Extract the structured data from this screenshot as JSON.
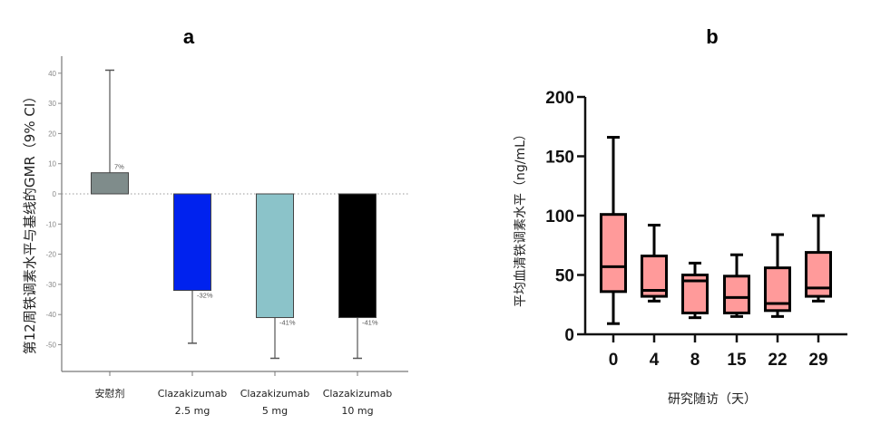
{
  "chart_data": [
    {
      "type": "bar",
      "title": "a",
      "ylabel": "第12周铁调素水平与基线的GMR（9% CI）",
      "xlabel": "",
      "ylim": [
        -58,
        44
      ],
      "yticks": [
        40,
        30,
        20,
        10,
        0,
        -10,
        -20,
        -30,
        -40,
        -50
      ],
      "reference_line": 0,
      "categories": [
        {
          "line1": "安慰剂",
          "line2": ""
        },
        {
          "line1": "Clazakizumab",
          "line2": "2.5 mg"
        },
        {
          "line1": "Clazakizumab",
          "line2": "5 mg"
        },
        {
          "line1": "Clazakizumab",
          "line2": "10 mg"
        }
      ],
      "values": [
        7,
        -32,
        -41,
        -41
      ],
      "value_labels": [
        "7%",
        "-32%",
        "-41%",
        "-41%"
      ],
      "error_bars": [
        {
          "direction": "up",
          "limit": 41
        },
        {
          "direction": "down",
          "limit": -49.5
        },
        {
          "direction": "down",
          "limit": -54.5
        },
        {
          "direction": "down",
          "limit": -54.5
        }
      ],
      "colors": [
        "#7f8c8b",
        "#0022ee",
        "#8bc3c9",
        "#000000"
      ],
      "grid": false
    },
    {
      "type": "boxplot",
      "title": "b",
      "ylabel": "平均血清铁调素水平（ng/mL）",
      "xlabel": "研究随访（天）",
      "ylim": [
        0,
        200
      ],
      "yticks": [
        0,
        50,
        100,
        150,
        200
      ],
      "categories": [
        "0",
        "4",
        "8",
        "15",
        "22",
        "29"
      ],
      "boxes": [
        {
          "min": 9,
          "q1": 36,
          "median": 57,
          "q3": 101,
          "max": 166
        },
        {
          "min": 28,
          "q1": 32,
          "median": 37,
          "q3": 66,
          "max": 92
        },
        {
          "min": 14,
          "q1": 18,
          "median": 45,
          "q3": 50,
          "max": 60
        },
        {
          "min": 15,
          "q1": 18,
          "median": 31,
          "q3": 49,
          "max": 67
        },
        {
          "min": 15,
          "q1": 20,
          "median": 26,
          "q3": 56,
          "max": 84
        },
        {
          "min": 28,
          "q1": 32,
          "median": 39,
          "q3": 69,
          "max": 100
        }
      ],
      "box_color": "#ff9a9a",
      "grid": false
    }
  ]
}
